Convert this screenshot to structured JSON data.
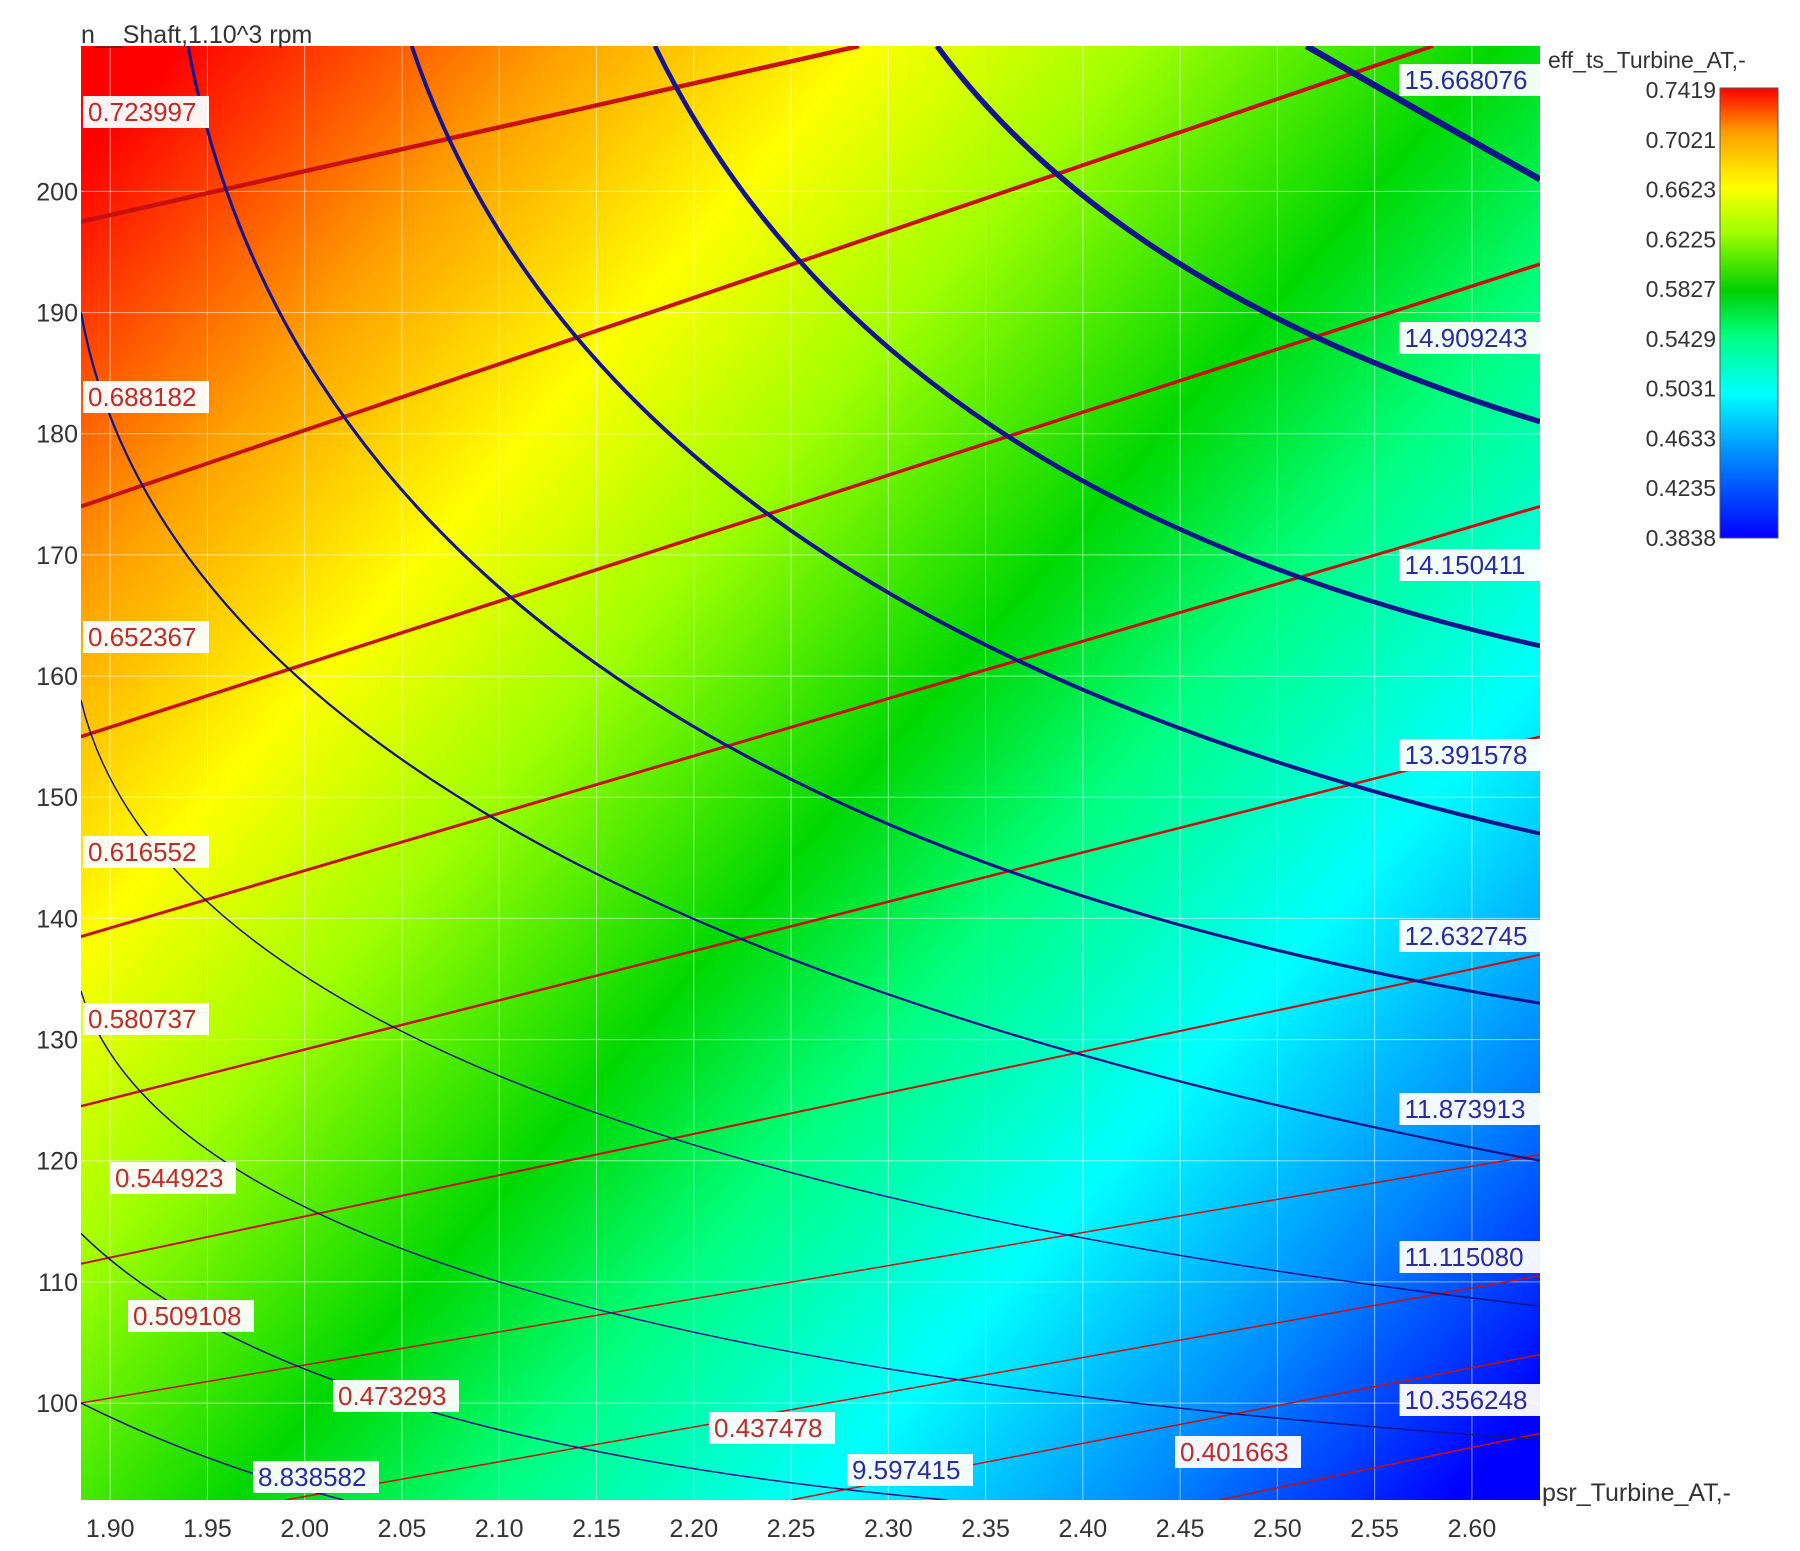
{
  "chart_data": {
    "type": "heatmap",
    "title": "",
    "xlabel": "psr_Turbine_AT,-",
    "ylabel": "n__Shaft,1.10^3 rpm",
    "xlim": [
      1.885,
      2.635
    ],
    "ylim": [
      92,
      212
    ],
    "x_ticks": [
      "1.90",
      "1.95",
      "2.00",
      "2.05",
      "2.10",
      "2.15",
      "2.20",
      "2.25",
      "2.30",
      "2.35",
      "2.40",
      "2.45",
      "2.50",
      "2.55",
      "2.60"
    ],
    "y_ticks": [
      "100",
      "110",
      "120",
      "130",
      "140",
      "150",
      "160",
      "170",
      "180",
      "190",
      "200"
    ],
    "grid": true,
    "colorbar": {
      "label": "eff_ts_Turbine_AT,-",
      "ticks": [
        "0.7419",
        "0.7021",
        "0.6623",
        "0.6225",
        "0.5827",
        "0.5429",
        "0.5031",
        "0.4633",
        "0.4235",
        "0.3838"
      ],
      "min": 0.3838,
      "max": 0.7419,
      "colors": [
        "#0000ff",
        "#0080ff",
        "#00ffff",
        "#00ff80",
        "#00cc00",
        "#80ff00",
        "#ffff00",
        "#ffaa00",
        "#ff5500",
        "#ff0000"
      ],
      "placement": "right"
    },
    "efficiency_contours": {
      "color": "#c81010",
      "series": [
        {
          "value": "0.723997",
          "line": [
            [
              1.885,
              197.5
            ],
            [
              2.285,
              212
            ]
          ]
        },
        {
          "value": "0.688182",
          "line": [
            [
              1.885,
              174
            ],
            [
              2.58,
              212
            ]
          ]
        },
        {
          "value": "0.652367",
          "line": [
            [
              1.885,
              155
            ],
            [
              2.635,
              194
            ]
          ]
        },
        {
          "value": "0.616552",
          "line": [
            [
              1.885,
              138.5
            ],
            [
              2.635,
              174
            ]
          ]
        },
        {
          "value": "0.580737",
          "line": [
            [
              1.885,
              124.5
            ],
            [
              2.635,
              155
            ]
          ]
        },
        {
          "value": "0.544923",
          "line": [
            [
              1.885,
              111.5
            ],
            [
              2.635,
              137
            ]
          ]
        },
        {
          "value": "0.509108",
          "line": [
            [
              1.885,
              100
            ],
            [
              2.635,
              120.5
            ]
          ]
        },
        {
          "value": "0.473293",
          "line": [
            [
              1.99,
              92
            ],
            [
              2.635,
              110.5
            ]
          ]
        },
        {
          "value": "0.437478",
          "line": [
            [
              2.25,
              92
            ],
            [
              2.635,
              104
            ]
          ]
        },
        {
          "value": "0.401663",
          "line": [
            [
              2.47,
              92
            ],
            [
              2.635,
              97.5
            ]
          ]
        }
      ]
    },
    "mass_flow_contours": {
      "color": "#14148c",
      "series": [
        {
          "value": "15.668076",
          "curve": [
            [
              2.515,
              212
            ],
            [
              2.58,
              206
            ],
            [
              2.635,
              201
            ]
          ]
        },
        {
          "value": "14.909243",
          "curve": [
            [
              2.325,
              212
            ],
            [
              2.45,
              194
            ],
            [
              2.635,
              181
            ]
          ]
        },
        {
          "value": "14.150411",
          "curve": [
            [
              2.18,
              212
            ],
            [
              2.35,
              181
            ],
            [
              2.635,
              162.5
            ]
          ]
        },
        {
          "value": "13.391578",
          "curve": [
            [
              2.055,
              212
            ],
            [
              2.25,
              172
            ],
            [
              2.635,
              147
            ]
          ]
        },
        {
          "value": "12.632745",
          "curve": [
            [
              1.94,
              212
            ],
            [
              2.15,
              161
            ],
            [
              2.635,
              133
            ]
          ]
        },
        {
          "value": "11.873913",
          "curve": [
            [
              1.885,
              190
            ],
            [
              2.1,
              148
            ],
            [
              2.635,
              120
            ]
          ]
        },
        {
          "value": "11.115080",
          "curve": [
            [
              1.885,
              158
            ],
            [
              2.1,
              127
            ],
            [
              2.635,
              108
            ]
          ]
        },
        {
          "value": "10.356248",
          "curve": [
            [
              1.885,
              134
            ],
            [
              2.1,
              110
            ],
            [
              2.635,
              97
            ]
          ]
        },
        {
          "value": "9.597415",
          "curve": [
            [
              1.885,
              114
            ],
            [
              2.05,
              100
            ],
            [
              2.33,
              92
            ]
          ]
        },
        {
          "value": "8.838582",
          "curve": [
            [
              1.885,
              100
            ],
            [
              1.95,
              95.5
            ],
            [
              2.02,
              92
            ]
          ]
        }
      ]
    }
  }
}
